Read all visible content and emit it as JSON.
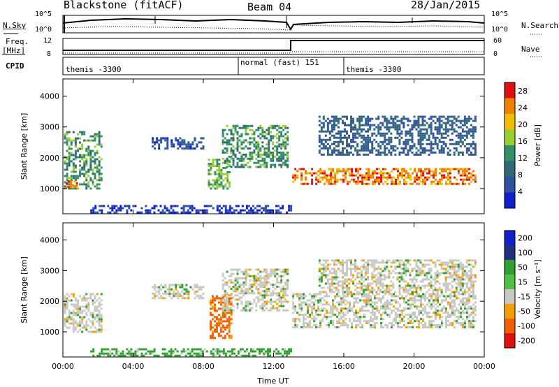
{
  "header": {
    "title": "Blackstone (fitACF)",
    "beam": "Beam 04",
    "date": "28/Jan/2015"
  },
  "top_panels": {
    "nsky_label": "N.Sky",
    "nsearch_label": "N.Search",
    "nsky_ticks": [
      "10^5",
      "10^0"
    ],
    "freq_label_1": "Freq.",
    "freq_label_2": "[MHz]",
    "freq_ticks": [
      "12",
      "8"
    ],
    "nave_label": "Nave",
    "nave_ticks": [
      "60",
      "0"
    ],
    "cpid_label": "CPID",
    "cpid_segments": [
      {
        "name": "themis -3300"
      },
      {
        "name": "normal (fast) 151"
      },
      {
        "name": "themis -3300"
      }
    ]
  },
  "chart_data": [
    {
      "type": "heatmap",
      "title": "",
      "xlabel": "Time UT",
      "ylabel": "Slant Range [km]",
      "x_ticks": [
        "00:00",
        "04:00",
        "08:00",
        "12:00",
        "16:00",
        "20:00",
        "00:00"
      ],
      "x_range_hours": [
        0,
        24
      ],
      "ylim": [
        180,
        4560
      ],
      "y_ticks": [
        1000,
        2000,
        3000,
        4000
      ],
      "colorbar": {
        "label": "Power [dB]",
        "ticks": [
          4,
          8,
          12,
          16,
          20,
          24,
          28
        ],
        "range": [
          0,
          30
        ]
      },
      "regions": [
        {
          "t": [
            0.0,
            2.2
          ],
          "r": [
            1000,
            2900
          ],
          "value_db": 14
        },
        {
          "t": [
            0.1,
            0.8
          ],
          "r": [
            1050,
            1300
          ],
          "value_db": 26
        },
        {
          "t": [
            5.0,
            8.0
          ],
          "r": [
            2300,
            2700
          ],
          "value_db": 6
        },
        {
          "t": [
            8.2,
            9.5
          ],
          "r": [
            1000,
            2000
          ],
          "value_db": 16
        },
        {
          "t": [
            9.0,
            12.8
          ],
          "r": [
            1700,
            3100
          ],
          "value_db": 14
        },
        {
          "t": [
            13.0,
            23.5
          ],
          "r": [
            1150,
            1700
          ],
          "value_db": 26
        },
        {
          "t": [
            14.5,
            23.5
          ],
          "r": [
            2100,
            3400
          ],
          "value_db": 8
        },
        {
          "t": [
            1.5,
            13.0
          ],
          "r": [
            220,
            500
          ],
          "value_db": 4
        }
      ]
    },
    {
      "type": "heatmap",
      "title": "",
      "xlabel": "Time UT",
      "ylabel": "Slant Range [km]",
      "x_ticks": [
        "00:00",
        "04:00",
        "08:00",
        "12:00",
        "16:00",
        "20:00",
        "00:00"
      ],
      "x_range_hours": [
        0,
        24
      ],
      "ylim": [
        180,
        4560
      ],
      "y_ticks": [
        1000,
        2000,
        3000,
        4000
      ],
      "colorbar": {
        "label": "Velocity [m s⁻¹]",
        "ticks": [
          200,
          100,
          50,
          15,
          -15,
          -50,
          -100,
          -200
        ]
      },
      "regions": [
        {
          "t": [
            0.0,
            2.2
          ],
          "r": [
            1000,
            2300
          ],
          "value_ms": 0
        },
        {
          "t": [
            5.0,
            8.0
          ],
          "r": [
            2100,
            2600
          ],
          "value_ms": 0
        },
        {
          "t": [
            8.3,
            9.6
          ],
          "r": [
            800,
            2300
          ],
          "value_ms": -60
        },
        {
          "t": [
            9.0,
            12.8
          ],
          "r": [
            1700,
            3100
          ],
          "value_ms": 0
        },
        {
          "t": [
            13.0,
            23.5
          ],
          "r": [
            1150,
            2300
          ],
          "value_ms": 0
        },
        {
          "t": [
            14.5,
            23.5
          ],
          "r": [
            2300,
            3400
          ],
          "value_ms": 0
        },
        {
          "t": [
            1.5,
            13.0
          ],
          "r": [
            220,
            500
          ],
          "value_ms": 30
        }
      ]
    }
  ]
}
